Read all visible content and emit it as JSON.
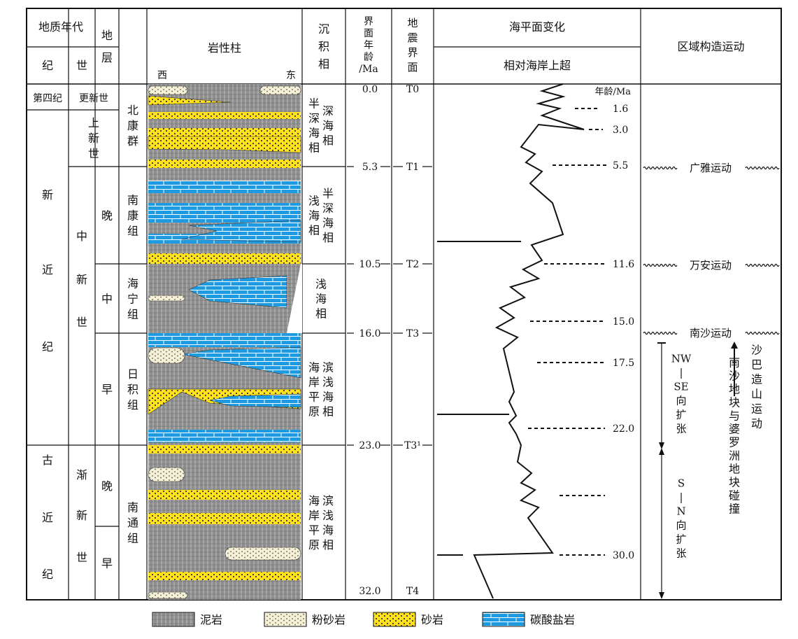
{
  "headers": {
    "geo_age": "地质年代",
    "period": "纪",
    "epoch": "世",
    "strata": [
      "地",
      "层"
    ],
    "lithology": "岩性柱",
    "west": "西",
    "east": "东",
    "facies": [
      "沉",
      "积",
      "相"
    ],
    "boundary_age": [
      "界",
      "面",
      "年",
      "龄",
      "/Ma"
    ],
    "seismic": [
      "地",
      "震",
      "界",
      "面"
    ],
    "sea_level": "海平面变化",
    "onlap": "相对海岸上超",
    "tectonic": "区域构造运动"
  },
  "periods": [
    {
      "name": "第四纪"
    },
    {
      "name": "新近纪",
      "chars": [
        "新",
        "近",
        "纪"
      ]
    },
    {
      "name": "古近纪",
      "chars": [
        "古",
        "近",
        "纪"
      ]
    }
  ],
  "epochs": [
    {
      "name": "更新世"
    },
    {
      "name": "上新世",
      "chars": [
        "上",
        "新",
        "世"
      ]
    },
    {
      "name": "中新世",
      "chars": [
        "中",
        "新",
        "世"
      ]
    },
    {
      "name": "渐新世",
      "chars": [
        "渐",
        "新",
        "世"
      ]
    }
  ],
  "subepochs": [
    "晚",
    "中",
    "早",
    "晚",
    "早"
  ],
  "formations": [
    {
      "name": "北康群",
      "chars": [
        "北",
        "康",
        "群"
      ]
    },
    {
      "name": "南康组",
      "chars": [
        "南",
        "康",
        "组"
      ]
    },
    {
      "name": "海宁组",
      "chars": [
        "海",
        "宁",
        "组"
      ]
    },
    {
      "name": "日积组",
      "chars": [
        "日",
        "积",
        "组"
      ]
    },
    {
      "name": "南通组",
      "chars": [
        "南",
        "通",
        "组"
      ]
    }
  ],
  "facies": [
    {
      "cols": [
        [
          "半",
          "深",
          "海",
          "相"
        ],
        [
          "深",
          "海",
          "相"
        ]
      ]
    },
    {
      "cols": [
        [
          "浅",
          "海",
          "相"
        ],
        [
          "半",
          "深",
          "海",
          "相"
        ]
      ]
    },
    {
      "cols": [
        [
          "浅",
          "海",
          "相"
        ]
      ]
    },
    {
      "cols": [
        [
          "海",
          "岸",
          "平",
          "原"
        ],
        [
          "滨",
          "浅",
          "海",
          "相"
        ]
      ]
    },
    {
      "cols": [
        [
          "海",
          "岸",
          "平",
          "原"
        ],
        [
          "滨",
          "浅",
          "海",
          "相"
        ]
      ]
    }
  ],
  "boundaries": [
    {
      "age": "0.0",
      "seismic": "T0"
    },
    {
      "age": "5.3",
      "seismic": "T1"
    },
    {
      "age": "10.5",
      "seismic": "T2"
    },
    {
      "age": "16.0",
      "seismic": "T3"
    },
    {
      "age": "23.0",
      "seismic": "T3¹"
    },
    {
      "age": "32.0",
      "seismic": "T4"
    }
  ],
  "sea_level_ages": {
    "title": "年龄/Ma",
    "labels": [
      "1.6",
      "3.0",
      "5.5",
      "11.6",
      "15.0",
      "17.5",
      "22.0",
      "30.0"
    ]
  },
  "tectonics": {
    "events": [
      "广雅运动",
      "万安运动",
      "南沙运动"
    ],
    "nw_se": [
      "NW",
      "|",
      "SE",
      "向",
      "扩",
      "张"
    ],
    "s_n": [
      "S",
      "|",
      "N",
      "向",
      "扩",
      "张"
    ],
    "collision": [
      "南",
      "沙",
      "地",
      "块",
      "与",
      "婆",
      "罗",
      "洲",
      "地",
      "块",
      "碰",
      "撞"
    ],
    "sabah": [
      "沙",
      "巴",
      "造",
      "山",
      "运",
      "动"
    ]
  },
  "legend": [
    {
      "label": "泥岩",
      "pattern": "mudstone"
    },
    {
      "label": "粉砂岩",
      "pattern": "siltstone"
    },
    {
      "label": "砂岩",
      "pattern": "sandstone"
    },
    {
      "label": "碳酸盐岩",
      "pattern": "carbonate"
    }
  ],
  "colors": {
    "mudstone": "#8f8f8f",
    "siltstone": "#f6f0d6",
    "sandstone": "#ffe21a",
    "carbonate": "#1e9ae0",
    "line": "#111111"
  }
}
